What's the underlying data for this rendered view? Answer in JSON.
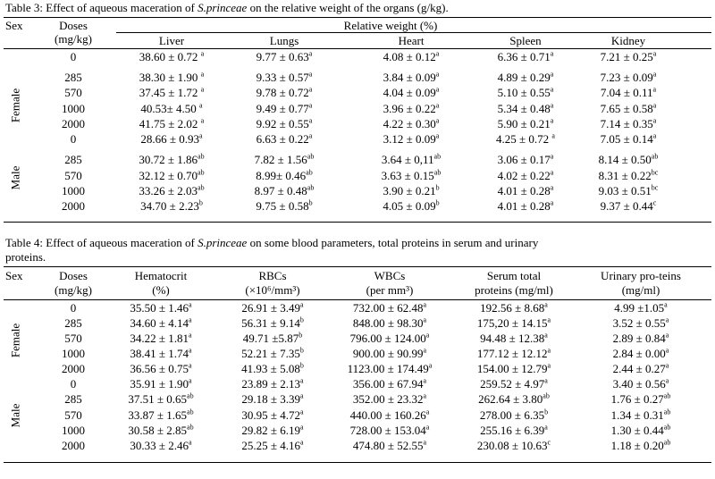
{
  "table3": {
    "caption_pre": "Table 3: Effect of aqueous maceration of ",
    "caption_em": "S.princeae",
    "caption_post": " on the relative weight of the organs (g/kg).",
    "headers": {
      "sex": "Sex",
      "doses": "Doses",
      "doses_unit": "(mg/kg)",
      "group": "Relative weight (%)",
      "cols": [
        "Liver",
        "Lungs",
        "Heart",
        "Spleen",
        "Kidney"
      ]
    },
    "groups": [
      {
        "label": "Female",
        "rows": [
          {
            "dose": "0",
            "cells": [
              [
                "38.60 ± 0.72 ",
                "a"
              ],
              [
                "9.77 ± 0.63",
                "a"
              ],
              [
                "4.08 ± 0.12",
                "a"
              ],
              [
                "6.36 ± 0.71",
                "a"
              ],
              [
                "7.21 ± 0.25",
                "a"
              ]
            ]
          },
          {
            "dose": "285",
            "cells": [
              [
                "38.30 ± 1.90 ",
                "a"
              ],
              [
                "9.33 ± 0.57",
                "a"
              ],
              [
                "3.84 ± 0.09",
                "a"
              ],
              [
                "4.89 ± 0.29",
                "a"
              ],
              [
                "7.23 ± 0.09",
                "a"
              ]
            ]
          },
          {
            "dose": "570",
            "cells": [
              [
                "37.45 ± 1.72 ",
                "a"
              ],
              [
                "9.78 ± 0.72",
                "a"
              ],
              [
                "4.04 ± 0.09",
                "a"
              ],
              [
                "5.10 ± 0.55",
                "a"
              ],
              [
                "7.04 ± 0.11",
                "a"
              ]
            ]
          },
          {
            "dose": "1000",
            "cells": [
              [
                "40.53± 4.50 ",
                "a"
              ],
              [
                "9.49 ± 0.77",
                "a"
              ],
              [
                "3.96 ± 0.22",
                "a"
              ],
              [
                "5.34 ± 0.48",
                "a"
              ],
              [
                "7.65 ± 0.58",
                "a"
              ]
            ]
          },
          {
            "dose": "2000",
            "cells": [
              [
                "41.75 ± 2.02 ",
                "a"
              ],
              [
                "9.92 ± 0.55",
                "a"
              ],
              [
                "4.22 ± 0.30",
                "a"
              ],
              [
                "5.90 ± 0.21",
                "a"
              ],
              [
                "7.14 ± 0.35",
                "a"
              ]
            ]
          }
        ]
      },
      {
        "label": "Male",
        "rows": [
          {
            "dose": "0",
            "cells": [
              [
                "28.66 ± 0.93",
                "a"
              ],
              [
                "6.63 ± 0.22",
                "a"
              ],
              [
                "3.12 ± 0.09",
                "a"
              ],
              [
                "4.25 ± 0.72 ",
                "a"
              ],
              [
                "7.05 ± 0.14",
                "a"
              ]
            ]
          },
          {
            "dose": "285",
            "cells": [
              [
                "30.72 ± 1.86",
                "ab"
              ],
              [
                "7.82 ± 1.56",
                "ab"
              ],
              [
                "3.64 ± 0,11",
                "ab"
              ],
              [
                "3.06 ± 0.17",
                "a"
              ],
              [
                "8.14 ± 0.50",
                "ab"
              ]
            ]
          },
          {
            "dose": "570",
            "cells": [
              [
                "32.12 ± 0.70",
                "ab"
              ],
              [
                "8.99± 0.46",
                "ab"
              ],
              [
                "3.63 ± 0.15",
                "ab"
              ],
              [
                "4.02 ± 0.22",
                "a"
              ],
              [
                "8.31 ± 0.22",
                "bc"
              ]
            ]
          },
          {
            "dose": "1000",
            "cells": [
              [
                "33.26 ± 2.03",
                "ab"
              ],
              [
                "8.97 ± 0.48",
                "ab"
              ],
              [
                "3.90 ± 0.21",
                "b"
              ],
              [
                "4.01 ± 0.28",
                "a"
              ],
              [
                "9.03 ± 0.51",
                "bc"
              ]
            ]
          },
          {
            "dose": "2000",
            "cells": [
              [
                "34.70 ± 2.23",
                "b"
              ],
              [
                "9.75 ± 0.58",
                "b"
              ],
              [
                "4.05 ± 0.09",
                "b"
              ],
              [
                "4.01 ± 0.28",
                "a"
              ],
              [
                "9.37 ± 0.44",
                "c"
              ]
            ]
          }
        ]
      }
    ]
  },
  "table4": {
    "caption_pre": "Table 4: Effect of aqueous maceration of ",
    "caption_em": "S.princeae",
    "caption_post": " on some blood parameters, total proteins in serum and urinary",
    "caption_line2": "proteins.",
    "headers": {
      "sex": "Sex",
      "doses": "Doses",
      "doses_unit": "(mg/kg)",
      "cols": [
        {
          "l1": "Hematocrit",
          "l2": "(%)"
        },
        {
          "l1": "RBCs",
          "l2": "(×10⁶/mm³)"
        },
        {
          "l1": "WBCs",
          "l2": "(per mm³)"
        },
        {
          "l1": "Serum total",
          "l2": "proteins (mg/ml)"
        },
        {
          "l1": "Urinary pro-teins",
          "l2": "(mg/ml)"
        }
      ]
    },
    "groups": [
      {
        "label": "Female",
        "rows": [
          {
            "dose": "0",
            "cells": [
              [
                "35.50 ± 1.46",
                "a"
              ],
              [
                "26.91 ± 3.49",
                "a"
              ],
              [
                "732.00 ± 62.48",
                "a"
              ],
              [
                "192.56 ± 8.68",
                "a"
              ],
              [
                "4.99 ±1.05",
                "a"
              ]
            ]
          },
          {
            "dose": "285",
            "cells": [
              [
                "34.60 ± 4.14",
                "a"
              ],
              [
                "56.31 ± 9.14",
                "b"
              ],
              [
                "848.00 ± 98.30",
                "a"
              ],
              [
                "175,20 ± 14.15",
                "a"
              ],
              [
                "3.52 ± 0.55",
                "a"
              ]
            ]
          },
          {
            "dose": "570",
            "cells": [
              [
                "34.22 ± 1.81",
                "a"
              ],
              [
                "49.71 ±5.87",
                "b"
              ],
              [
                "796.00 ± 124.00",
                "a"
              ],
              [
                "94.48 ± 12.38",
                "a"
              ],
              [
                "2.89 ± 0.84",
                "a"
              ]
            ]
          },
          {
            "dose": "1000",
            "cells": [
              [
                "38.41 ± 1.74",
                "a"
              ],
              [
                "52.21 ± 7.35",
                "b"
              ],
              [
                "900.00 ± 90.99",
                "a"
              ],
              [
                "177.12 ± 12.12",
                "a"
              ],
              [
                "2.84 ± 0.00",
                "a"
              ]
            ]
          },
          {
            "dose": "2000",
            "cells": [
              [
                "36.56 ± 0.75",
                "a"
              ],
              [
                "41.93 ± 5.08",
                "b"
              ],
              [
                "1123.00 ± 174.49",
                "a"
              ],
              [
                "154.00 ± 12.79",
                "a"
              ],
              [
                "2.44 ± 0.27",
                "a"
              ]
            ]
          }
        ]
      },
      {
        "label": "Male",
        "rows": [
          {
            "dose": "0",
            "cells": [
              [
                "35.91 ± 1.90",
                "a"
              ],
              [
                "23.89 ± 2.13",
                "a"
              ],
              [
                "356.00 ± 67.94",
                "a"
              ],
              [
                "259.52 ± 4.97",
                "a"
              ],
              [
                "3.40 ± 0.56",
                "a"
              ]
            ]
          },
          {
            "dose": "285",
            "cells": [
              [
                "37.51 ± 0.65",
                "ab"
              ],
              [
                "29.18 ± 3.39",
                "a"
              ],
              [
                "352.00 ± 23.32",
                "a"
              ],
              [
                "262.64 ± 3.80",
                "ab"
              ],
              [
                "1.76 ± 0.27",
                "ab"
              ]
            ]
          },
          {
            "dose": "570",
            "cells": [
              [
                "33.87 ± 1.65",
                "ab"
              ],
              [
                "30.95 ± 4.72",
                "a"
              ],
              [
                "440.00 ± 160.26",
                "a"
              ],
              [
                "278.00 ± 6.35",
                "b"
              ],
              [
                "1.34 ± 0.31",
                "ab"
              ]
            ]
          },
          {
            "dose": "1000",
            "cells": [
              [
                "30.58 ± 2.85",
                "ab"
              ],
              [
                "29.82 ± 6.19",
                "a"
              ],
              [
                "728.00 ± 153.04",
                "a"
              ],
              [
                "255.16 ± 6.39",
                "a"
              ],
              [
                "1.30 ± 0.44",
                "ab"
              ]
            ]
          },
          {
            "dose": "2000",
            "cells": [
              [
                "30.33 ± 2.46",
                "a"
              ],
              [
                "25.25 ± 4.16",
                "a"
              ],
              [
                "474.80 ± 52.55",
                "a"
              ],
              [
                "230.08 ± 10.63",
                "c"
              ],
              [
                "1.18 ± 0.20",
                "ab"
              ]
            ]
          }
        ]
      }
    ]
  }
}
